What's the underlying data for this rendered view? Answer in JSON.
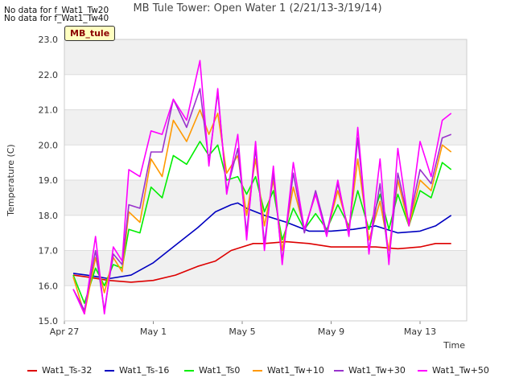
{
  "header": {
    "no_data_lines": [
      "No data for f_Wat1_Tw20",
      "No data for f_Wat1_Tw40"
    ],
    "title": "MB Tule Tower: Open Water 1 (2/21/13-3/19/14)",
    "station_tag": "MB_tule"
  },
  "colors": {
    "Wat1_Ts-32": "#dd0000",
    "Wat1_Ts-16": "#0000c0",
    "Wat1_Ts0": "#00ee00",
    "Wat1_Tw+10": "#ff9900",
    "Wat1_Tw+30": "#9933cc",
    "Wat1_Tw+50": "#ff00ff"
  },
  "chart_data": {
    "type": "line",
    "xlabel": "Time",
    "ylabel": "Temperature (C)",
    "x_ticks": [
      "Apr 27",
      "May 1",
      "May 5",
      "May 9",
      "May 13"
    ],
    "x_tick_days": [
      0,
      4,
      8,
      12,
      16
    ],
    "xlim_days": [
      0,
      18.1
    ],
    "y_ticks": [
      "15.0",
      "16.0",
      "17.0",
      "18.0",
      "19.0",
      "20.0",
      "21.0",
      "22.0",
      "23.0"
    ],
    "ylim": [
      15,
      23
    ],
    "grid": true,
    "legend_position": "bottom",
    "series": [
      {
        "name": "Wat1_Ts-32",
        "points": [
          [
            0.4,
            16.3
          ],
          [
            1,
            16.25
          ],
          [
            2,
            16.15
          ],
          [
            3,
            16.1
          ],
          [
            4,
            16.15
          ],
          [
            5,
            16.3
          ],
          [
            6,
            16.55
          ],
          [
            6.8,
            16.7
          ],
          [
            7.5,
            17.0
          ],
          [
            8,
            17.1
          ],
          [
            8.5,
            17.2
          ],
          [
            9,
            17.2
          ],
          [
            10,
            17.25
          ],
          [
            11,
            17.2
          ],
          [
            12,
            17.1
          ],
          [
            13,
            17.1
          ],
          [
            14,
            17.1
          ],
          [
            15,
            17.05
          ],
          [
            16,
            17.1
          ],
          [
            16.7,
            17.2
          ],
          [
            17.4,
            17.2
          ]
        ]
      },
      {
        "name": "Wat1_Ts-16",
        "points": [
          [
            0.4,
            16.35
          ],
          [
            1,
            16.3
          ],
          [
            2,
            16.2
          ],
          [
            3,
            16.3
          ],
          [
            4,
            16.65
          ],
          [
            5,
            17.15
          ],
          [
            6,
            17.65
          ],
          [
            6.8,
            18.1
          ],
          [
            7.5,
            18.3
          ],
          [
            7.8,
            18.35
          ],
          [
            8.2,
            18.2
          ],
          [
            9,
            18.0
          ],
          [
            10,
            17.8
          ],
          [
            11,
            17.55
          ],
          [
            12,
            17.55
          ],
          [
            13,
            17.6
          ],
          [
            14,
            17.7
          ],
          [
            15,
            17.5
          ],
          [
            16,
            17.55
          ],
          [
            16.7,
            17.7
          ],
          [
            17.4,
            18.0
          ]
        ]
      },
      {
        "name": "Wat1_Ts0",
        "points": [
          [
            0.4,
            16.3
          ],
          [
            0.9,
            15.5
          ],
          [
            1.4,
            16.5
          ],
          [
            1.8,
            16.0
          ],
          [
            2.2,
            16.6
          ],
          [
            2.6,
            16.5
          ],
          [
            2.9,
            17.6
          ],
          [
            3.4,
            17.5
          ],
          [
            3.9,
            18.8
          ],
          [
            4.4,
            18.5
          ],
          [
            4.9,
            19.7
          ],
          [
            5.5,
            19.45
          ],
          [
            6.1,
            20.1
          ],
          [
            6.5,
            19.7
          ],
          [
            6.9,
            20.0
          ],
          [
            7.3,
            19.0
          ],
          [
            7.8,
            19.1
          ],
          [
            8.2,
            18.6
          ],
          [
            8.6,
            19.1
          ],
          [
            9.0,
            18.1
          ],
          [
            9.4,
            18.7
          ],
          [
            9.8,
            17.3
          ],
          [
            10.3,
            18.2
          ],
          [
            10.8,
            17.6
          ],
          [
            11.3,
            18.05
          ],
          [
            11.8,
            17.6
          ],
          [
            12.3,
            18.3
          ],
          [
            12.8,
            17.7
          ],
          [
            13.2,
            18.7
          ],
          [
            13.7,
            17.6
          ],
          [
            14.2,
            18.6
          ],
          [
            14.6,
            17.6
          ],
          [
            15.0,
            18.6
          ],
          [
            15.5,
            17.7
          ],
          [
            16.0,
            18.7
          ],
          [
            16.5,
            18.5
          ],
          [
            17.0,
            19.5
          ],
          [
            17.4,
            19.3
          ]
        ]
      },
      {
        "name": "Wat1_Tw+10",
        "points": [
          [
            0.4,
            16.25
          ],
          [
            0.9,
            15.2
          ],
          [
            1.4,
            16.8
          ],
          [
            1.8,
            15.8
          ],
          [
            2.2,
            16.8
          ],
          [
            2.6,
            16.4
          ],
          [
            2.9,
            18.1
          ],
          [
            3.4,
            17.8
          ],
          [
            3.9,
            19.6
          ],
          [
            4.4,
            19.1
          ],
          [
            4.9,
            20.7
          ],
          [
            5.5,
            20.1
          ],
          [
            6.1,
            21.0
          ],
          [
            6.5,
            20.3
          ],
          [
            6.9,
            20.9
          ],
          [
            7.3,
            19.2
          ],
          [
            7.8,
            19.7
          ],
          [
            8.2,
            18.0
          ],
          [
            8.6,
            19.6
          ],
          [
            9.0,
            17.7
          ],
          [
            9.4,
            19.0
          ],
          [
            9.8,
            17.0
          ],
          [
            10.3,
            18.8
          ],
          [
            10.8,
            17.6
          ],
          [
            11.3,
            18.6
          ],
          [
            11.8,
            17.5
          ],
          [
            12.3,
            18.7
          ],
          [
            12.8,
            17.6
          ],
          [
            13.2,
            19.6
          ],
          [
            13.7,
            17.3
          ],
          [
            14.2,
            18.4
          ],
          [
            14.6,
            17.0
          ],
          [
            15.0,
            19.0
          ],
          [
            15.5,
            17.7
          ],
          [
            16.0,
            19.0
          ],
          [
            16.5,
            18.7
          ],
          [
            17.0,
            20.0
          ],
          [
            17.4,
            19.8
          ]
        ]
      },
      {
        "name": "Wat1_Tw+30",
        "points": [
          [
            0.4,
            15.9
          ],
          [
            0.9,
            15.3
          ],
          [
            1.4,
            17.0
          ],
          [
            1.8,
            15.3
          ],
          [
            2.2,
            16.9
          ],
          [
            2.6,
            16.6
          ],
          [
            2.9,
            18.3
          ],
          [
            3.4,
            18.2
          ],
          [
            3.9,
            19.8
          ],
          [
            4.4,
            19.8
          ],
          [
            4.9,
            21.3
          ],
          [
            5.5,
            20.5
          ],
          [
            6.1,
            21.6
          ],
          [
            6.5,
            19.5
          ],
          [
            6.9,
            21.5
          ],
          [
            7.3,
            18.7
          ],
          [
            7.8,
            19.9
          ],
          [
            8.2,
            17.5
          ],
          [
            8.6,
            19.9
          ],
          [
            9.0,
            17.2
          ],
          [
            9.4,
            19.2
          ],
          [
            9.8,
            16.7
          ],
          [
            10.3,
            19.2
          ],
          [
            10.8,
            17.5
          ],
          [
            11.3,
            18.7
          ],
          [
            11.8,
            17.5
          ],
          [
            12.3,
            18.9
          ],
          [
            12.8,
            17.5
          ],
          [
            13.2,
            20.2
          ],
          [
            13.7,
            17.0
          ],
          [
            14.2,
            18.9
          ],
          [
            14.6,
            16.7
          ],
          [
            15.0,
            19.2
          ],
          [
            15.5,
            17.8
          ],
          [
            16.0,
            19.3
          ],
          [
            16.5,
            18.9
          ],
          [
            17.0,
            20.2
          ],
          [
            17.4,
            20.3
          ]
        ]
      },
      {
        "name": "Wat1_Tw+50",
        "points": [
          [
            0.4,
            15.9
          ],
          [
            0.9,
            15.2
          ],
          [
            1.4,
            17.4
          ],
          [
            1.8,
            15.2
          ],
          [
            2.2,
            17.1
          ],
          [
            2.6,
            16.7
          ],
          [
            2.9,
            19.3
          ],
          [
            3.4,
            19.1
          ],
          [
            3.9,
            20.4
          ],
          [
            4.4,
            20.3
          ],
          [
            4.9,
            21.3
          ],
          [
            5.5,
            20.7
          ],
          [
            6.1,
            22.4
          ],
          [
            6.5,
            19.4
          ],
          [
            6.9,
            21.6
          ],
          [
            7.3,
            18.6
          ],
          [
            7.8,
            20.3
          ],
          [
            8.2,
            17.3
          ],
          [
            8.6,
            20.1
          ],
          [
            9.0,
            17.0
          ],
          [
            9.4,
            19.4
          ],
          [
            9.8,
            16.6
          ],
          [
            10.3,
            19.5
          ],
          [
            10.8,
            17.6
          ],
          [
            11.3,
            18.6
          ],
          [
            11.8,
            17.4
          ],
          [
            12.3,
            19.0
          ],
          [
            12.8,
            17.4
          ],
          [
            13.2,
            20.5
          ],
          [
            13.7,
            16.9
          ],
          [
            14.2,
            19.6
          ],
          [
            14.6,
            16.6
          ],
          [
            15.0,
            19.9
          ],
          [
            15.5,
            17.7
          ],
          [
            16.0,
            20.1
          ],
          [
            16.5,
            19.1
          ],
          [
            17.0,
            20.7
          ],
          [
            17.4,
            20.9
          ]
        ]
      }
    ]
  }
}
